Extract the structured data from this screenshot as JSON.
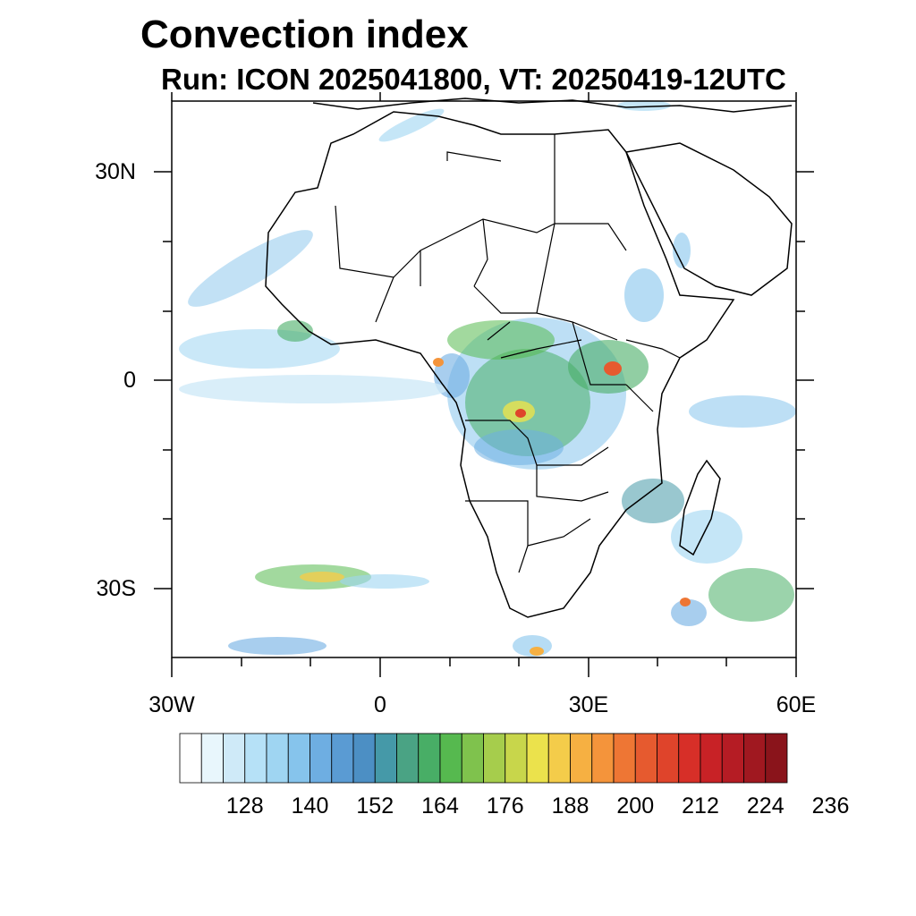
{
  "header": {
    "title": "Convection index",
    "subtitle": "Run: ICON 2025041800,  VT: 20250419-12UTC"
  },
  "map": {
    "lat_labels": [
      "30N",
      "0",
      "30S"
    ],
    "lon_labels": [
      "30W",
      "0",
      "30E",
      "60E"
    ],
    "extent": {
      "lon_min": -30,
      "lon_max": 60,
      "lat_min": -40,
      "lat_max": 40
    }
  },
  "colorbar": {
    "labels": [
      "128",
      "140",
      "152",
      "164",
      "176",
      "188",
      "200",
      "212",
      "224",
      "236"
    ],
    "colors": [
      "#ffffff",
      "#e8f6fc",
      "#cfeaf8",
      "#b6e1f7",
      "#9fd5f2",
      "#86c4ec",
      "#6eaee2",
      "#5a9bd3",
      "#4c8fc4",
      "#4599a8",
      "#4aa384",
      "#48ae66",
      "#56b94f",
      "#7fc24d",
      "#a6cd4c",
      "#c8d64b",
      "#ebe24c",
      "#f4cc4a",
      "#f6b042",
      "#f4943b",
      "#ee7634",
      "#e65a2f",
      "#df442b",
      "#d72f28",
      "#c82226",
      "#b51c24",
      "#a01820",
      "#8a141b"
    ]
  }
}
